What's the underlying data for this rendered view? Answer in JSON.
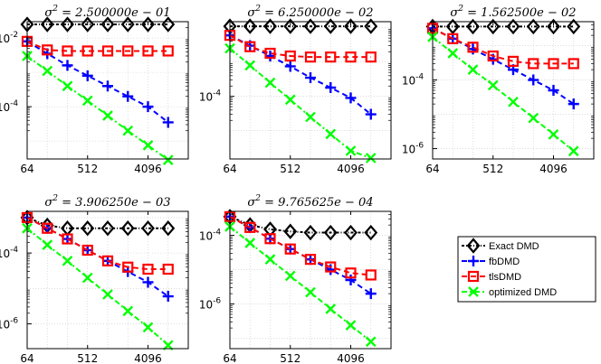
{
  "chart_data": {
    "type": "line",
    "x_axis": {
      "scale": "log2",
      "ticks": [
        64,
        512,
        4096
      ],
      "tick_labels": [
        "64",
        "512",
        "4096"
      ],
      "xlim": [
        64,
        16384
      ]
    },
    "x": [
      64,
      128,
      256,
      512,
      1024,
      2048,
      4096,
      8192
    ],
    "series_styles": [
      {
        "name": "Exact DMD",
        "color": "#000000",
        "marker": "diamond",
        "dash": "3,2,1,2"
      },
      {
        "name": "fbDMD",
        "color": "#0000ff",
        "marker": "plus",
        "dash": "6,4"
      },
      {
        "name": "tlsDMD",
        "color": "#ff0000",
        "marker": "square",
        "dash": "6,4"
      },
      {
        "name": "optimized DMD",
        "color": "#00ff00",
        "marker": "x",
        "dash": "6,3,2,3"
      }
    ],
    "legend": {
      "placement": "lower-right",
      "entries": [
        "Exact DMD",
        "fbDMD",
        "tlsDMD",
        "optimized DMD"
      ]
    },
    "panels": [
      {
        "title_base": "σ",
        "title_exp": "2",
        "title_rest": " = 2.500000e − 01",
        "y_axis": {
          "scale": "log10",
          "ylim": [
            3e-06,
            0.03
          ],
          "tick_values": [
            0.01,
            0.0001
          ],
          "tick_base": [
            "10",
            "10"
          ],
          "tick_exp": [
            "-2",
            "-4"
          ]
        },
        "series": [
          {
            "name": "Exact DMD",
            "values": [
              0.025,
              0.025,
              0.025,
              0.025,
              0.025,
              0.025,
              0.025,
              0.025
            ]
          },
          {
            "name": "fbDMD",
            "values": [
              0.008,
              0.0035,
              0.0016,
              0.0008,
              0.0004,
              0.0002,
              0.0001,
              3.5e-05
            ]
          },
          {
            "name": "tlsDMD",
            "values": [
              0.008,
              0.0045,
              0.0042,
              0.0042,
              0.0042,
              0.0042,
              0.0042,
              0.0042
            ]
          },
          {
            "name": "optimized DMD",
            "values": [
              0.003,
              0.0011,
              0.0004,
              0.00015,
              5.5e-05,
              2e-05,
              7.5e-06,
              2.8e-06
            ]
          }
        ]
      },
      {
        "title_base": "σ",
        "title_exp": "2",
        "title_rest": " = 6.250000e − 02",
        "y_axis": {
          "scale": "log10",
          "ylim": [
            1.5e-06,
            0.015
          ],
          "tick_values": [
            0.0001
          ],
          "tick_base": [
            "10"
          ],
          "tick_exp": [
            "-4"
          ]
        },
        "series": [
          {
            "name": "Exact DMD",
            "values": [
              0.011,
              0.011,
              0.011,
              0.011,
              0.011,
              0.011,
              0.011,
              0.011
            ]
          },
          {
            "name": "fbDMD",
            "values": [
              0.006,
              0.003,
              0.0015,
              0.00075,
              0.00035,
              0.00018,
              9e-05,
              3e-05
            ]
          },
          {
            "name": "tlsDMD",
            "values": [
              0.006,
              0.0028,
              0.0018,
              0.0015,
              0.0014,
              0.0014,
              0.0014,
              0.0014
            ]
          },
          {
            "name": "optimized DMD",
            "values": [
              0.0025,
              0.0008,
              0.00025,
              8e-05,
              2.5e-05,
              8e-06,
              2.6e-06,
              1.6e-06
            ]
          }
        ]
      },
      {
        "title_base": "σ",
        "title_exp": "2",
        "title_rest": " = 1.562500e − 02",
        "y_axis": {
          "scale": "log10",
          "ylim": [
            5e-07,
            0.005
          ],
          "tick_values": [
            0.0001,
            1e-06
          ],
          "tick_base": [
            "10",
            "10"
          ],
          "tick_exp": [
            "-4",
            "-6"
          ]
        },
        "series": [
          {
            "name": "Exact DMD",
            "values": [
              0.0036,
              0.0036,
              0.0036,
              0.0036,
              0.0036,
              0.0036,
              0.0036,
              0.0036
            ]
          },
          {
            "name": "fbDMD",
            "values": [
              0.0032,
              0.0016,
              0.0008,
              0.0004,
              0.0002,
              0.0001,
              5e-05,
              2e-05
            ]
          },
          {
            "name": "tlsDMD",
            "values": [
              0.0032,
              0.0016,
              0.0009,
              0.0005,
              0.00035,
              0.0003,
              0.0003,
              0.0003
            ]
          },
          {
            "name": "optimized DMD",
            "values": [
              0.0018,
              0.0006,
              0.0002,
              7e-05,
              2.3e-05,
              7.8e-06,
              2.6e-06,
              8.5e-07
            ]
          }
        ]
      },
      {
        "title_base": "σ",
        "title_exp": "2",
        "title_rest": " = 3.906250e − 03",
        "y_axis": {
          "scale": "log10",
          "ylim": [
            2e-07,
            0.0015
          ],
          "tick_values": [
            0.0001,
            1e-06
          ],
          "tick_base": [
            "10",
            "10"
          ],
          "tick_exp": [
            "-4",
            "-6"
          ]
        },
        "series": [
          {
            "name": "Exact DMD",
            "values": [
              0.001,
              0.0006,
              0.0005,
              0.0005,
              0.0005,
              0.0005,
              0.0005,
              0.0005
            ]
          },
          {
            "name": "fbDMD",
            "values": [
              0.001,
              0.0005,
              0.00025,
              0.00012,
              6e-05,
              3e-05,
              1.5e-05,
              6e-06
            ]
          },
          {
            "name": "tlsDMD",
            "values": [
              0.001,
              0.0005,
              0.00025,
              0.00012,
              6e-05,
              4e-05,
              3.5e-05,
              3.5e-05
            ]
          },
          {
            "name": "optimized DMD",
            "values": [
              0.0005,
              0.00017,
              6e-05,
              2e-05,
              6.8e-06,
              2.3e-06,
              8e-07,
              2.5e-07
            ]
          }
        ]
      },
      {
        "title_base": "σ",
        "title_exp": "2",
        "title_rest": " = 9.765625e − 04",
        "y_axis": {
          "scale": "log10",
          "ylim": [
            5e-08,
            0.0005
          ],
          "tick_values": [
            0.0001,
            1e-06
          ],
          "tick_base": [
            "10",
            "10"
          ],
          "tick_exp": [
            "-4",
            "-6"
          ]
        },
        "series": [
          {
            "name": "Exact DMD",
            "values": [
              0.00035,
              0.0002,
              0.00015,
              0.00013,
              0.00012,
              0.00012,
              0.00012,
              0.00012
            ]
          },
          {
            "name": "fbDMD",
            "values": [
              0.00035,
              0.00017,
              8e-05,
              4e-05,
              2e-05,
              1e-05,
              5e-06,
              2e-06
            ]
          },
          {
            "name": "tlsDMD",
            "values": [
              0.00035,
              0.00017,
              8e-05,
              4e-05,
              2e-05,
              1.2e-05,
              8e-06,
              7e-06
            ]
          },
          {
            "name": "optimized DMD",
            "values": [
              0.00018,
              6e-05,
              2e-05,
              6.6e-06,
              2.2e-06,
              7.2e-07,
              2.4e-07,
              8e-08
            ]
          }
        ]
      }
    ]
  }
}
